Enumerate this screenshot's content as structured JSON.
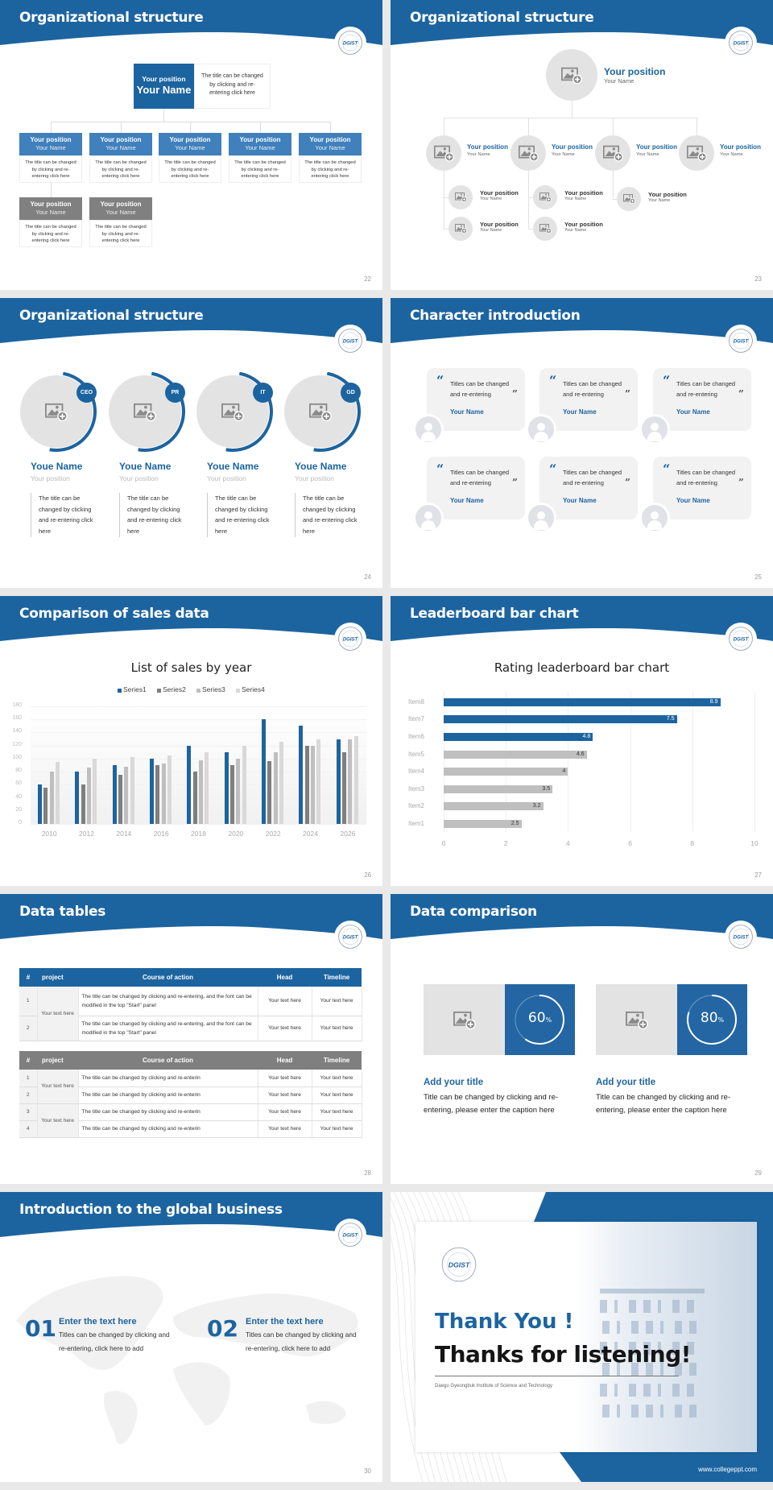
{
  "brand": {
    "primary": "#1c64a0",
    "dark_gray": "#7f7f7f",
    "light_gray": "#e3e3e3",
    "logo": "DGIST"
  },
  "s22": {
    "title": "Organizational structure",
    "page": "22",
    "top": {
      "position": "Your position",
      "name": "Your Name",
      "desc": "The title can be changed by clicking and re-entering click here"
    },
    "members": [
      {
        "position": "Your position",
        "name": "Your Name",
        "desc": "The title can be changed by clicking and re-entering click here",
        "tone": "blue"
      },
      {
        "position": "Your position",
        "name": "Your Name",
        "desc": "The title can be changed by clicking and re-entering click here",
        "tone": "blue"
      },
      {
        "position": "Your position",
        "name": "Your Name",
        "desc": "The title can be changed by clicking and re-entering click here",
        "tone": "blue"
      },
      {
        "position": "Your position",
        "name": "Your Name",
        "desc": "The title can be changed by clicking and re-entering click here",
        "tone": "blue"
      },
      {
        "position": "Your position",
        "name": "Your Name",
        "desc": "The title can be changed by clicking and re-entering click here",
        "tone": "blue"
      },
      {
        "position": "Your position",
        "name": "Your Name",
        "desc": "The title can be changed by clicking and re-entering click here",
        "tone": "gray"
      },
      {
        "position": "Your position",
        "name": "Your Name",
        "desc": "The title can be changed by clicking and re-entering click here",
        "tone": "gray"
      }
    ]
  },
  "s23": {
    "title": "Organizational structure",
    "page": "23",
    "top": {
      "position": "Your position",
      "name": "Your Name"
    },
    "level2": [
      {
        "position": "Your position",
        "name": "Your Name"
      },
      {
        "position": "Your position",
        "name": "Your Name"
      },
      {
        "position": "Your position",
        "name": "Your Name"
      },
      {
        "position": "Your position",
        "name": "Your Name"
      }
    ],
    "level3": [
      {
        "position": "Your position",
        "name": "Your Name"
      },
      {
        "position": "Your position",
        "name": "Your Name"
      },
      {
        "position": "Your position",
        "name": "Your Name"
      },
      {
        "position": "Your position",
        "name": "Your Name"
      },
      {
        "position": "Your position",
        "name": "Your Name"
      }
    ]
  },
  "s24": {
    "title": "Organizational structure",
    "page": "24",
    "members": [
      {
        "badge": "CEO",
        "name": "Youe Name",
        "position": "Your position",
        "desc": "The title can be changed by clicking and re-entering click here"
      },
      {
        "badge": "PR",
        "name": "Youe Name",
        "position": "Your position",
        "desc": "The title can be changed by clicking and re-entering click here"
      },
      {
        "badge": "IT",
        "name": "Youe Name",
        "position": "Your position",
        "desc": "The title can be changed by clicking and re-entering click here"
      },
      {
        "badge": "GD",
        "name": "Youe Name",
        "position": "Your position",
        "desc": "The title can be changed by clicking and re-entering click here"
      }
    ]
  },
  "s25": {
    "title": "Character introduction",
    "page": "25",
    "open_quote": "“",
    "close_quote": "”",
    "cards": [
      {
        "quote": "Titles can be changed and re-entering",
        "name": "Your Name"
      },
      {
        "quote": "Titles can be changed and re-entering",
        "name": "Your Name"
      },
      {
        "quote": "Titles can be changed and re-entering",
        "name": "Your Name"
      },
      {
        "quote": "Titles can be changed and re-entering",
        "name": "Your Name"
      },
      {
        "quote": "Titles can be changed and re-entering",
        "name": "Your Name"
      },
      {
        "quote": "Titles can be changed and re-entering",
        "name": "Your Name"
      }
    ]
  },
  "s26": {
    "title": "Comparison of sales data",
    "page": "26"
  },
  "s27": {
    "title": "Leaderboard bar chart",
    "page": "27"
  },
  "s28": {
    "title": "Data tables",
    "page": "28",
    "columns": [
      "#",
      "project",
      "Course of action",
      "Head",
      "Timeline"
    ],
    "table1": {
      "project": "Your text here",
      "rows": [
        {
          "num": "1",
          "action": "The title can be changed by clicking and re-entering, and the font can be modified in the top \"Start\" panel",
          "head": "Your text here",
          "timeline": "Your text here"
        },
        {
          "num": "2",
          "action": "The title can be changed by clicking and re-entering, and the font can be modified in the top \"Start\" panel",
          "head": "Your text here",
          "timeline": "Your text here"
        }
      ]
    },
    "table2": {
      "projects": [
        "Your text here",
        "Your text here"
      ],
      "rows": [
        {
          "num": "1",
          "action": "The title can be changed by clicking and re-enterin",
          "head": "Your text here",
          "timeline": "Your text here"
        },
        {
          "num": "2",
          "action": "The title can be changed by clicking and re-enterin",
          "head": "Your text here",
          "timeline": "Your text here"
        },
        {
          "num": "3",
          "action": "The title can be changed by clicking and re-enterin",
          "head": "Your text here",
          "timeline": "Your text here"
        },
        {
          "num": "4",
          "action": "The title can be changed by clicking and re-enterin",
          "head": "Your text here",
          "timeline": "Your text here"
        }
      ]
    }
  },
  "s29": {
    "title": "Data comparison",
    "page": "29",
    "items": [
      {
        "percent": 60,
        "value": "60",
        "unit": "%",
        "title": "Add your title",
        "desc": "Title can be changed by clicking and re-entering, please enter the caption here"
      },
      {
        "percent": 80,
        "value": "80",
        "unit": "%",
        "title": "Add your title",
        "desc": "Title can be changed by clicking and re-entering, please enter the caption here"
      }
    ]
  },
  "s30": {
    "title": "Introduction to the global business",
    "page": "30",
    "items": [
      {
        "num": "01",
        "title": "Enter the text here",
        "desc": "Titles can be changed by clicking and re-entering, click here to add"
      },
      {
        "num": "02",
        "title": "Enter the text here",
        "desc": "Titles can be changed by clicking and re-entering, click here to add"
      }
    ]
  },
  "s31": {
    "thank": "Thank You !",
    "thanks": "Thanks for listening!",
    "institute": "Daegu Gyeongbuk Institute of Science and Technology",
    "url": "www.collegeppt.com"
  },
  "chart_data": [
    {
      "type": "bar",
      "title": "List of sales by year",
      "xlabel": "",
      "ylabel": "",
      "categories": [
        "2010",
        "2012",
        "2014",
        "2016",
        "2018",
        "2020",
        "2022",
        "2024",
        "2026"
      ],
      "series": [
        {
          "name": "Series1",
          "color": "#1c64a0",
          "values": [
            60,
            80,
            90,
            100,
            120,
            110,
            160,
            150,
            130
          ]
        },
        {
          "name": "Series2",
          "color": "#7f7f7f",
          "values": [
            55,
            60,
            75,
            90,
            80,
            90,
            96,
            120,
            110
          ]
        },
        {
          "name": "Series3",
          "color": "#bfbfbf",
          "values": [
            80,
            86,
            88,
            92,
            98,
            100,
            110,
            120,
            130
          ]
        },
        {
          "name": "Series4",
          "color": "#d9d9d9",
          "values": [
            95,
            100,
            102,
            105,
            110,
            120,
            126,
            130,
            135
          ]
        }
      ],
      "ylim": [
        0,
        180
      ],
      "yticks": [
        "0",
        "20",
        "40",
        "60",
        "80",
        "100",
        "120",
        "140",
        "160",
        "180"
      ],
      "legend": "top",
      "grid": true
    },
    {
      "type": "bar",
      "orientation": "horizontal",
      "title": "Rating leaderboard bar chart",
      "categories": [
        "Item1",
        "Item2",
        "Item3",
        "Item4",
        "Item5",
        "Item6",
        "Item7",
        "Item8"
      ],
      "values": [
        2.5,
        3.2,
        3.5,
        4,
        4.6,
        4.8,
        7.5,
        8.9
      ],
      "labels": [
        "2.5",
        "3.2",
        "3.5",
        "4",
        "4.6",
        "4.8",
        "7.5",
        "8.9"
      ],
      "highlight_color": "#1c64a0",
      "base_color": "#bfbfbf",
      "highlight_top": 3,
      "xlim": [
        0,
        10
      ],
      "xticks": [
        "0",
        "2",
        "4",
        "6",
        "8",
        "10"
      ],
      "grid": true
    }
  ]
}
